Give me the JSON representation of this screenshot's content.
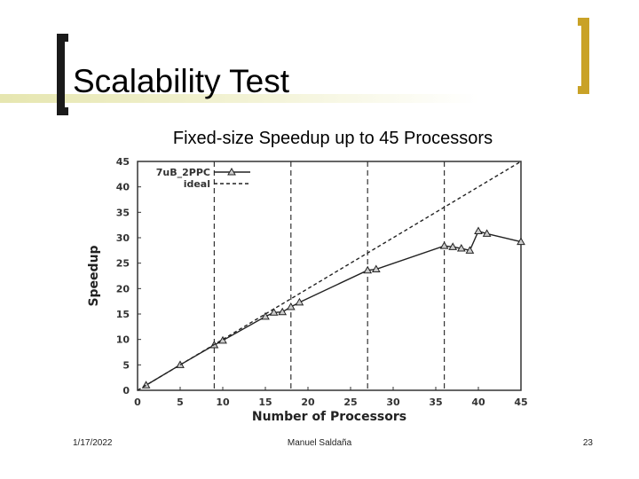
{
  "slide": {
    "title": "Scalability Test",
    "subtitle": "Fixed-size Speedup up to 45  Processors",
    "footer_date": "1/17/2022",
    "footer_author": "Manuel Saldaña",
    "page_number": "23"
  },
  "colors": {
    "accent_bracket": "#c9a227",
    "title_bracket": "#1a1a1a"
  },
  "chart_data": {
    "type": "line",
    "xlabel": "Number of Processors",
    "ylabel": "Speedup",
    "xlim": [
      0,
      45
    ],
    "ylim": [
      0,
      45
    ],
    "xticks": [
      0,
      5,
      10,
      15,
      20,
      25,
      30,
      35,
      40,
      45
    ],
    "yticks": [
      0,
      5,
      10,
      15,
      20,
      25,
      30,
      35,
      40,
      45
    ],
    "vertical_dashed_lines": [
      9,
      18,
      27,
      36
    ],
    "legend_position": "top-left",
    "series": [
      {
        "name": "7uB_2PPC",
        "marker": "triangle",
        "style": "solid",
        "x": [
          1,
          5,
          9,
          10,
          15,
          16,
          17,
          18,
          19,
          27,
          28,
          36,
          37,
          38,
          39,
          40,
          41,
          45
        ],
        "y": [
          1.0,
          5.0,
          8.9,
          9.8,
          14.5,
          15.3,
          15.4,
          16.4,
          17.3,
          23.6,
          23.8,
          28.4,
          28.2,
          27.9,
          27.5,
          31.3,
          30.8,
          29.2
        ]
      },
      {
        "name": "ideal",
        "marker": "none",
        "style": "dashed",
        "x": [
          0,
          45
        ],
        "y": [
          0,
          45
        ]
      }
    ]
  }
}
